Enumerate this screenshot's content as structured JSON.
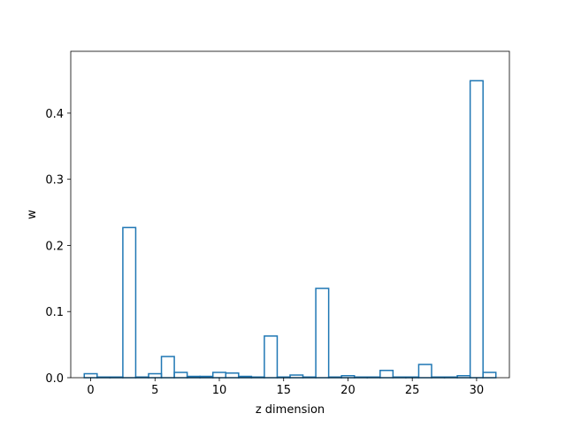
{
  "chart_data": {
    "type": "bar",
    "style": "step-histogram",
    "x": [
      0,
      1,
      2,
      3,
      4,
      5,
      6,
      7,
      8,
      9,
      10,
      11,
      12,
      13,
      14,
      15,
      16,
      17,
      18,
      19,
      20,
      21,
      22,
      23,
      24,
      25,
      26,
      27,
      28,
      29,
      30,
      31
    ],
    "values": [
      0.006,
      0.001,
      0.001,
      0.227,
      0.001,
      0.006,
      0.032,
      0.008,
      0.002,
      0.002,
      0.008,
      0.007,
      0.002,
      0.001,
      0.063,
      0.001,
      0.004,
      0.001,
      0.135,
      0.001,
      0.003,
      0.001,
      0.001,
      0.011,
      0.001,
      0.001,
      0.02,
      0.001,
      0.001,
      0.003,
      0.449,
      0.008
    ],
    "xlabel": "z dimension",
    "ylabel": "w",
    "xlim": [
      -1.55,
      32.55
    ],
    "ylim": [
      0,
      0.4935
    ],
    "xticks": [
      0,
      5,
      10,
      15,
      20,
      25,
      30
    ],
    "xtick_labels": [
      "0",
      "5",
      "10",
      "15",
      "20",
      "25",
      "30"
    ],
    "yticks": [
      0,
      0.1,
      0.2,
      0.3,
      0.4
    ],
    "ytick_labels": [
      "0.0",
      "0.1",
      "0.2",
      "0.3",
      "0.4"
    ],
    "grid": false,
    "colors": {
      "series": "#1f77b4"
    }
  }
}
